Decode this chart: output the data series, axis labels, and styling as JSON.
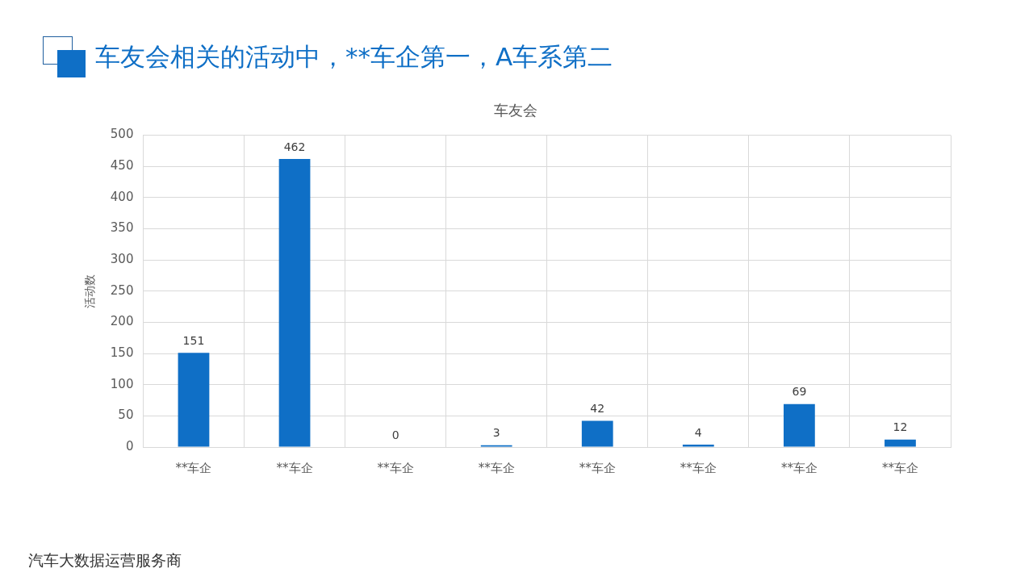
{
  "chart_data": {
    "type": "bar",
    "title": "车友会相关的活动中，**车企第一，A车系第二",
    "subtitle": "车友会",
    "ylabel": "活动数",
    "categories": [
      "**车企",
      "**车企",
      "**车企",
      "**车企",
      "**车企",
      "**车企",
      "**车企",
      "**车企"
    ],
    "values": [
      151,
      462,
      0,
      3,
      42,
      4,
      69,
      12
    ],
    "color": "#0f6fc6",
    "ylim": [
      0,
      500
    ],
    "yticks": [
      0,
      50,
      100,
      150,
      200,
      250,
      300,
      350,
      400,
      450,
      500
    ],
    "grid": true,
    "data_labels": true,
    "legend": false,
    "annotations": [
      "汽车大数据运营服务商"
    ]
  }
}
